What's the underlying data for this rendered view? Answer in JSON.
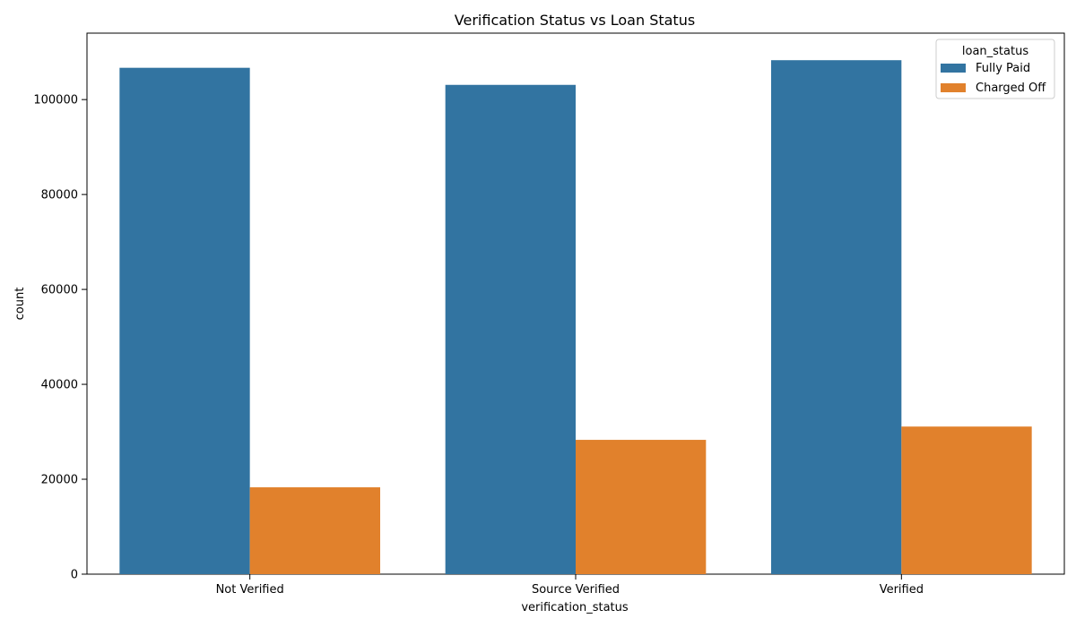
{
  "chart_data": {
    "type": "bar",
    "title": "Verification Status vs Loan Status",
    "xlabel": "verification_status",
    "ylabel": "count",
    "categories": [
      "Not Verified",
      "Source Verified",
      "Verified"
    ],
    "series": [
      {
        "name": "Fully Paid",
        "values": [
          106700,
          103100,
          108300
        ],
        "color": "#3274a1"
      },
      {
        "name": "Charged Off",
        "values": [
          18300,
          28300,
          31100
        ],
        "color": "#e1812c"
      }
    ],
    "ylim": [
      0,
      114000
    ],
    "yticks": [
      0,
      20000,
      40000,
      60000,
      80000,
      100000
    ],
    "yticklabels": [
      "0",
      "20000",
      "40000",
      "60000",
      "80000",
      "100000"
    ],
    "grid": false,
    "legend": {
      "title": "loan_status",
      "placement": "top-right"
    }
  }
}
